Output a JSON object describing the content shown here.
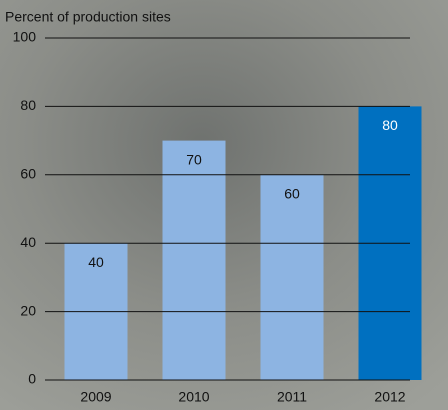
{
  "chart_data": {
    "type": "bar",
    "y_label": "Percent of production sites",
    "categories": [
      "2009",
      "2010",
      "2011",
      "2012"
    ],
    "values": [
      40,
      70,
      60,
      80
    ],
    "colors": [
      "#8db4e2",
      "#8db4e2",
      "#8db4e2",
      "#0070c0"
    ],
    "value_label_colors": [
      "#111111",
      "#111111",
      "#111111",
      "#ffffff"
    ],
    "ylim": [
      0,
      100
    ],
    "yticks": [
      0,
      20,
      40,
      60,
      80,
      100
    ],
    "grid": true
  }
}
